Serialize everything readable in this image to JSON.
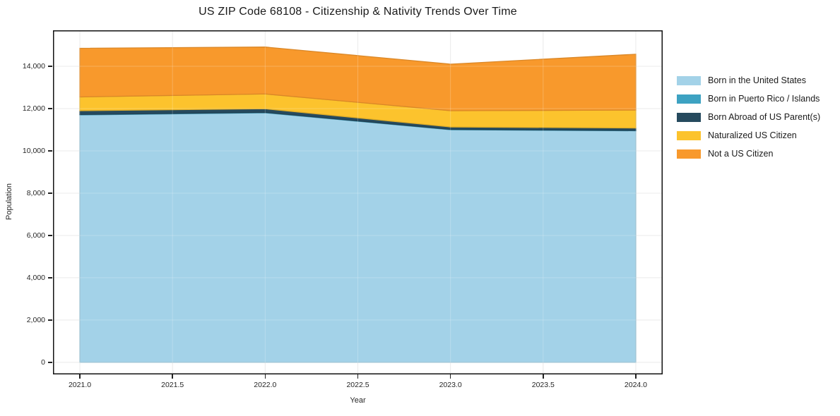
{
  "chart_data": {
    "type": "area",
    "stacked": true,
    "title": "US ZIP Code 68108 - Citizenship & Nativity Trends Over Time",
    "xlabel": "Year",
    "ylabel": "Population",
    "x": [
      2021,
      2022,
      2023,
      2024
    ],
    "series": [
      {
        "name": "Born in the United States",
        "color": "#A3D2E8",
        "values": [
          11700,
          11800,
          11000,
          10950
        ]
      },
      {
        "name": "Born in Puerto Rico / Islands",
        "color": "#3DA2C2",
        "values": [
          20,
          20,
          15,
          15
        ]
      },
      {
        "name": "Born Abroad of US Parent(s)",
        "color": "#264A5E",
        "values": [
          180,
          170,
          115,
          115
        ]
      },
      {
        "name": "Naturalized US Citizen",
        "color": "#FCC32D",
        "values": [
          650,
          700,
          770,
          850
        ]
      },
      {
        "name": "Not a US Citizen",
        "color": "#F8992C",
        "values": [
          2300,
          2220,
          2200,
          2640
        ]
      }
    ],
    "xticks": [
      {
        "value": 2021.0,
        "label": "2021.0"
      },
      {
        "value": 2021.5,
        "label": "2021.5"
      },
      {
        "value": 2022.0,
        "label": "2022.0"
      },
      {
        "value": 2022.5,
        "label": "2022.5"
      },
      {
        "value": 2023.0,
        "label": "2023.0"
      },
      {
        "value": 2023.5,
        "label": "2023.5"
      },
      {
        "value": 2024.0,
        "label": "2024.0"
      }
    ],
    "yticks": [
      {
        "value": 0,
        "label": "0"
      },
      {
        "value": 2000,
        "label": "2,000"
      },
      {
        "value": 4000,
        "label": "4,000"
      },
      {
        "value": 6000,
        "label": "6,000"
      },
      {
        "value": 8000,
        "label": "8,000"
      },
      {
        "value": 10000,
        "label": "10,000"
      },
      {
        "value": 12000,
        "label": "12,000"
      },
      {
        "value": 14000,
        "label": "14,000"
      }
    ],
    "xlim": [
      2020.855,
      2024.145
    ],
    "ylim": [
      -570,
      15700
    ],
    "grid": true,
    "legend_position": "right",
    "colors": {
      "background": "#ffffff",
      "gridline": "#e6e6e6",
      "spine": "#111111",
      "tick_text": "#262626",
      "title_text": "#1a1a1a"
    }
  }
}
